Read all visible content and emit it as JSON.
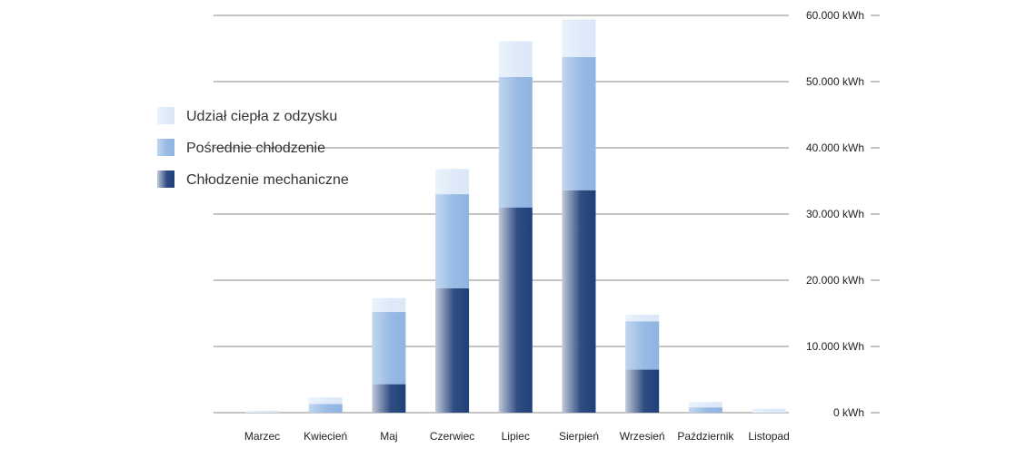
{
  "chart_data": {
    "type": "bar",
    "stacked": true,
    "categories": [
      "Marzec",
      "Kwiecień",
      "Maj",
      "Czerwiec",
      "Lipiec",
      "Sierpień",
      "Wrzesień",
      "Październik",
      "Listopad"
    ],
    "series": [
      {
        "name": "Chłodzenie mechaniczne",
        "color": "#1e3f78",
        "values": [
          0,
          0,
          4300,
          18800,
          31000,
          33600,
          6500,
          0,
          0
        ]
      },
      {
        "name": "Pośrednie chłodzenie",
        "color": "#8fb4e2",
        "values": [
          0,
          1300,
          10900,
          14200,
          19700,
          20100,
          7300,
          800,
          0
        ]
      },
      {
        "name": "Udział ciepła z odzysku",
        "color": "#dbe8f8",
        "values": [
          300,
          1000,
          2100,
          3800,
          5400,
          5700,
          1000,
          800,
          600
        ]
      }
    ],
    "legend_order": [
      "Udział ciepła z odzysku",
      "Pośrednie chłodzenie",
      "Chłodzenie mechaniczne"
    ],
    "y_ticks": [
      "0 kWh",
      "10.000 kWh",
      "20.000 kWh",
      "30.000 kWh",
      "40.000 kWh",
      "50.000 kWh",
      "60.000 kWh"
    ],
    "ylim": [
      0,
      60000
    ],
    "y_axis_position": "right",
    "legend_position": "left",
    "grid": true,
    "title": "",
    "xlabel": "",
    "ylabel": ""
  }
}
